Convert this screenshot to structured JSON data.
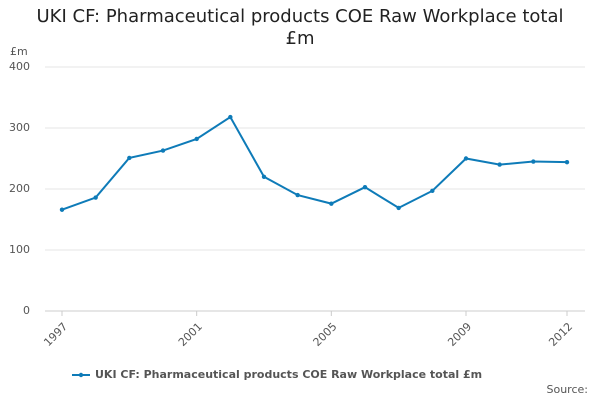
{
  "chart_data": {
    "type": "line",
    "title": "UKI CF: Pharmaceutical products COE Raw Workplace total £m",
    "y_label": "£m",
    "source": "Source:",
    "x": [
      1997,
      1998,
      1999,
      2000,
      2001,
      2002,
      2003,
      2004,
      2005,
      2006,
      2007,
      2008,
      2009,
      2010,
      2011,
      2012
    ],
    "series": [
      {
        "name": "UKI CF: Pharmaceutical products COE Raw Workplace total £m",
        "color": "#0e7bb8",
        "values": [
          166,
          186,
          251,
          263,
          282,
          318,
          220,
          190,
          176,
          203,
          169,
          197,
          250,
          240,
          245,
          244
        ]
      }
    ],
    "xlim": [
      1997,
      2012
    ],
    "xticks": [
      1997,
      2001,
      2005,
      2009,
      2012
    ],
    "ylim": [
      0,
      400
    ],
    "yticks": [
      0,
      100,
      200,
      300,
      400
    ],
    "grid": true
  }
}
